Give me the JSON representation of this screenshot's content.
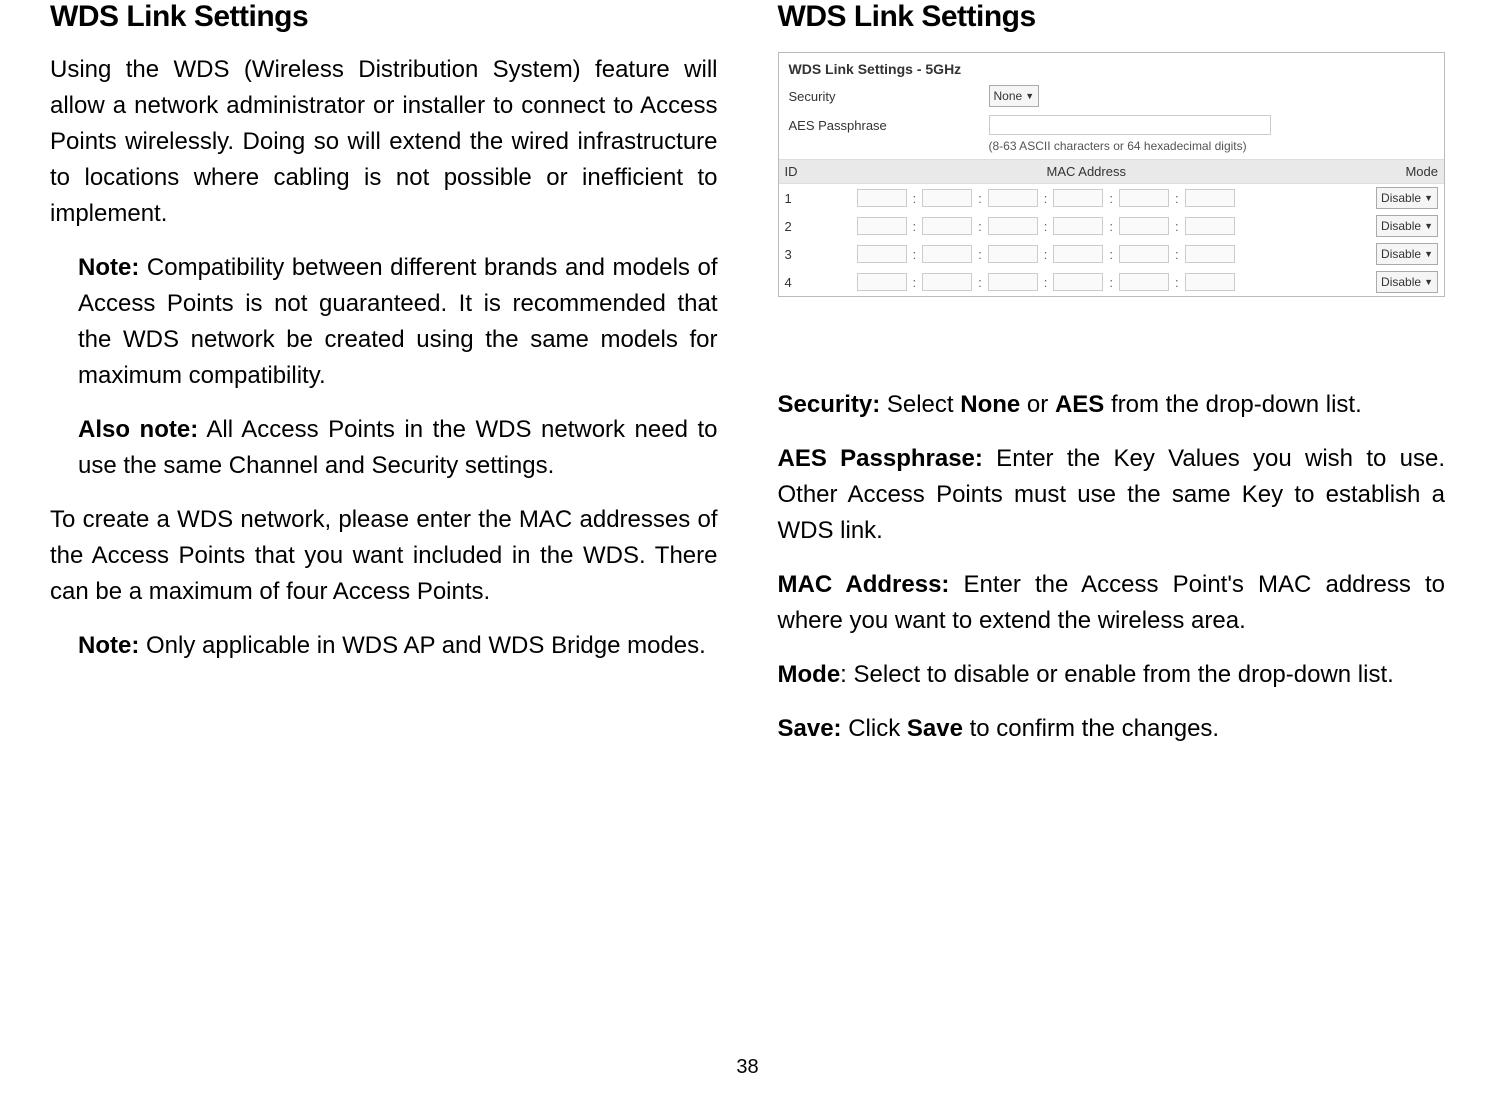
{
  "left": {
    "heading": "WDS Link Settings",
    "p1": "Using the WDS (Wireless Distribution System) feature will allow a network administrator or installer to connect to Access Points wirelessly. Doing so will extend the wired infrastructure to locations where cabling is not possible or inefficient to implement.",
    "note1_label": "Note:",
    "note1_text": " Compatibility between different brands and models of Access Points is not guaranteed. It is recommended that the WDS network be created using the same models for maximum compatibility.",
    "note2_label": "Also note:",
    "note2_text": " All Access Points in the WDS network need to use the same Channel and Security settings.",
    "p2": "To create a WDS network, please enter the MAC addresses of the Access Points that you want included in the WDS. There can be a maximum of four Access Points.",
    "note3_label": "Note:",
    "note3_text": " Only applicable in WDS AP and WDS Bridge modes."
  },
  "right": {
    "heading": "WDS Link Settings",
    "panel": {
      "title": "WDS Link Settings - 5GHz",
      "security_label": "Security",
      "security_value": "None",
      "passphrase_label": "AES Passphrase",
      "passphrase_hint": "(8-63 ASCII characters or 64 hexadecimal digits)",
      "col_id": "ID",
      "col_mac": "MAC Address",
      "col_mode": "Mode",
      "rows": [
        {
          "id": "1",
          "mode": "Disable"
        },
        {
          "id": "2",
          "mode": "Disable"
        },
        {
          "id": "3",
          "mode": "Disable"
        },
        {
          "id": "4",
          "mode": "Disable"
        }
      ]
    },
    "lines": {
      "security_label": "Security:",
      "security_text": " Select ",
      "security_none": "None",
      "security_or": " or ",
      "security_aes": "AES",
      "security_rest": " from the drop-down list.",
      "aes_label": "AES Passphrase:",
      "aes_text": " Enter the Key Values you wish to use. Other Access Points must use the same Key to establish a WDS link.",
      "mac_label": "MAC Address:",
      "mac_text": " Enter the Access Point's MAC address to where you want to extend the wireless area.",
      "mode_label": "Mode",
      "mode_text": ": Select to disable or enable from the drop-down list.",
      "save_label": "Save:",
      "save_text1": " Click ",
      "save_bold": "Save",
      "save_text2": " to confirm the changes."
    }
  },
  "page_number": "38"
}
